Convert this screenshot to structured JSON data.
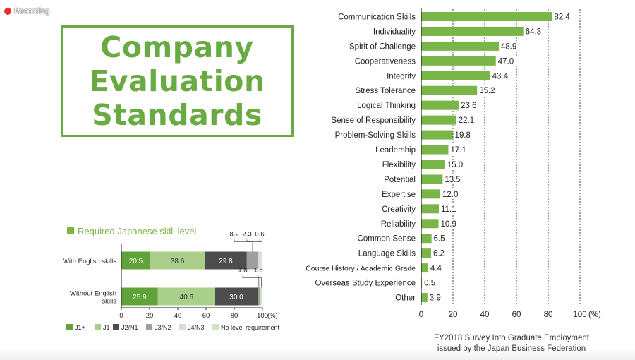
{
  "recording": {
    "label": "Recording",
    "dot_color": "#ef2b2b"
  },
  "title": {
    "lines": [
      "Company",
      "Evaluation",
      "Standards"
    ],
    "color": "#6aaa43"
  },
  "source": {
    "line1": "FY2018 Survey Into Graduate Employment",
    "line2": "issued by the Japan Business Federation"
  },
  "chart_data": [
    {
      "type": "bar",
      "orientation": "horizontal",
      "categories": [
        "Communication Skills",
        "Individuality",
        "Spirit of Challenge",
        "Cooperativeness",
        "Integrity",
        "Stress Tolerance",
        "Logical Thinking",
        "Sense of Responsibility",
        "Problem-Solving Skills",
        "Leadership",
        "Flexibility",
        "Potential",
        "Expertise",
        "Creativity",
        "Reliability",
        "Common Sense",
        "Language Skills",
        "Course History / Academic Grade",
        "Overseas Study Experience",
        "Other"
      ],
      "values": [
        82.4,
        64.3,
        48.9,
        47.0,
        43.4,
        35.2,
        23.6,
        22.1,
        19.8,
        17.1,
        15.0,
        13.5,
        12.0,
        11.1,
        10.9,
        6.5,
        6.2,
        4.4,
        0.5,
        3.9
      ],
      "value_labels": [
        "82.4",
        "64.3",
        "48.9",
        "47.0",
        "43.4",
        "35.2",
        "23.6",
        "22.1",
        "19.8",
        "17.1",
        "15.0",
        "13.5",
        "12.0",
        "11.1",
        "10.9",
        "6.5",
        "6.2",
        "4.4",
        "0.5",
        "3.9"
      ],
      "xlim": [
        0,
        100
      ],
      "xticks": [
        "0",
        "20",
        "40",
        "60",
        "80",
        "100"
      ],
      "xunit": "(%)",
      "grid": "dotted vertical",
      "bar_color": "#79b547"
    },
    {
      "type": "bar",
      "orientation": "horizontal",
      "stacked": true,
      "title": "Required Japanese skill level",
      "categories": [
        [
          "With English skills"
        ],
        [
          "Without English",
          "skills"
        ]
      ],
      "series": [
        {
          "name": "J1+",
          "color": "#5fa33a",
          "values": [
            20.5,
            25.9
          ],
          "labels": [
            "20.5",
            "25.9"
          ]
        },
        {
          "name": "J1",
          "color": "#a9cf8a",
          "values": [
            38.6,
            40.6
          ],
          "labels": [
            "38.6",
            "40.6"
          ]
        },
        {
          "name": "J2/N1",
          "color": "#4d4d4d",
          "values": [
            29.8,
            30.0
          ],
          "labels": [
            "29.8",
            "30.0"
          ]
        },
        {
          "name": "J3/N2",
          "color": "#9e9e9e",
          "values": [
            8.2,
            1.8
          ],
          "labels": [
            "8.2",
            "1.8"
          ]
        },
        {
          "name": "J4/N3",
          "color": "#dcdcdc",
          "values": [
            2.3,
            0.0
          ],
          "labels": [
            "2.3",
            ""
          ]
        },
        {
          "name": "No level requirement",
          "color": "#cfe4bd",
          "values": [
            0.6,
            1.8
          ],
          "labels": [
            "0.6",
            "1.8"
          ]
        }
      ],
      "xlim": [
        0,
        100
      ],
      "xticks": [
        "0",
        "20",
        "40",
        "60",
        "80",
        "100"
      ],
      "xunit": "(%)",
      "legend": "bottom"
    }
  ]
}
